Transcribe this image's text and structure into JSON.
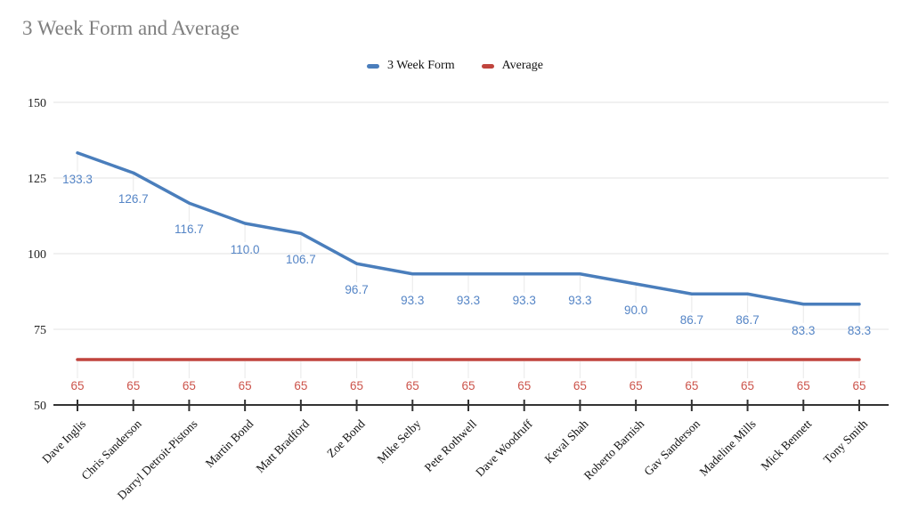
{
  "page": {
    "background": "#ffffff"
  },
  "chart_data": {
    "type": "line",
    "title": "3 Week Form and Average",
    "title_color": "#7f7f7f",
    "legend_position": "top",
    "grid": "horizontal",
    "axis_color": "#333333",
    "grid_color": "#e3e3e3",
    "leader_color": "#ececec",
    "categories": [
      "Dave Inglis",
      "Chris Sanderson",
      "Darryl Detroit-Pistons",
      "Martin Bond",
      "Matt Bradford",
      "Zoe Bond",
      "Mike Selby",
      "Pete Rothwell",
      "Dave Woodruff",
      "Keval Shah",
      "Roberto Barnish",
      "Gav Sanderson",
      "Madeline Mills",
      "Mick Bennett",
      "Tony Smith"
    ],
    "series": [
      {
        "name": "3 Week Form",
        "color": "#4a7ebc",
        "label_color": "#5585c6",
        "values": [
          133.3,
          126.7,
          116.7,
          110.0,
          106.7,
          96.7,
          93.3,
          93.3,
          93.3,
          93.3,
          90.0,
          86.7,
          86.7,
          83.3,
          83.3
        ],
        "labels": [
          "133.3",
          "126.7",
          "116.7",
          "110.0",
          "106.7",
          "96.7",
          "93.3",
          "93.3",
          "93.3",
          "93.3",
          "90.0",
          "86.7",
          "86.7",
          "83.3",
          "83.3"
        ]
      },
      {
        "name": "Average",
        "color": "#c0443d",
        "label_color": "#cc544b",
        "values": [
          65,
          65,
          65,
          65,
          65,
          65,
          65,
          65,
          65,
          65,
          65,
          65,
          65,
          65,
          65
        ],
        "labels": [
          "65",
          "65",
          "65",
          "65",
          "65",
          "65",
          "65",
          "65",
          "65",
          "65",
          "65",
          "65",
          "65",
          "65",
          "65"
        ]
      }
    ],
    "ylim": [
      50,
      150
    ],
    "yticks": [
      50,
      75,
      100,
      125,
      150
    ],
    "xlabel": "",
    "ylabel": ""
  }
}
